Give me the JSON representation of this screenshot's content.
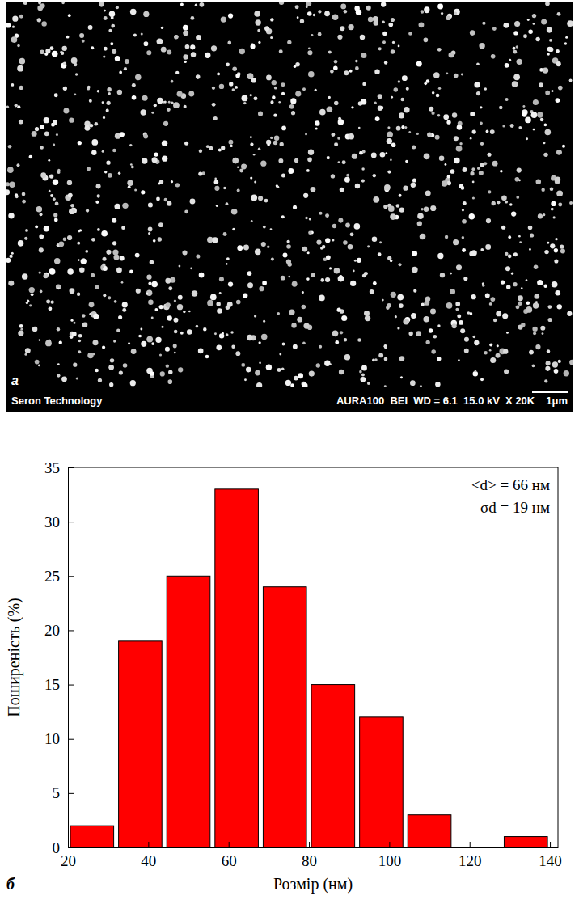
{
  "image": {
    "panel_label": "a",
    "footer_left": "Seron Technology",
    "footer_right": "AURA100  BEI  WD = 6.1  15.0 kV  X 20K",
    "scale_bar": "1μm"
  },
  "chart_data": {
    "type": "histogram",
    "panel_label": "б",
    "x_label": "Розмір (нм)",
    "y_label": "Поширеність (%)",
    "annotations": [
      "<d> = 66 нм",
      "σd = 19 нм"
    ],
    "bins": [
      20,
      32,
      44,
      56,
      68,
      80,
      92,
      104,
      116,
      128,
      140
    ],
    "values": [
      2,
      19,
      25,
      33,
      24,
      15,
      12,
      3,
      0,
      1
    ],
    "color": "#ff0000",
    "xlim": [
      20,
      142
    ],
    "xticks": [
      20,
      40,
      60,
      80,
      100,
      120,
      140
    ],
    "ylim": [
      0,
      35
    ],
    "yticks": [
      0,
      5,
      10,
      15,
      20,
      25,
      30,
      35
    ],
    "grid": false
  }
}
